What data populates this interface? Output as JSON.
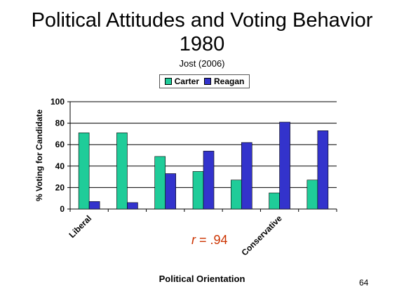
{
  "slide": {
    "title_line1": "Political Attitudes and Voting Behavior",
    "title_line2": "1980",
    "subtitle": "Jost (2006)",
    "annotation_r": "r",
    "annotation_value": " = .94",
    "slide_number": "64"
  },
  "chart_data": {
    "type": "bar",
    "categories": [
      "Liberal",
      "",
      "",
      "",
      "",
      "Conservative",
      ""
    ],
    "series": [
      {
        "name": "Carter",
        "values": [
          71,
          71,
          49,
          35,
          27,
          15,
          27
        ],
        "color": "#1fcc99"
      },
      {
        "name": "Reagan",
        "values": [
          7,
          6,
          33,
          54,
          62,
          81,
          73
        ],
        "color": "#3333cc"
      }
    ],
    "xlabel": "Political Orientation",
    "ylabel": "% Voting for Candidate",
    "ylim": [
      0,
      100
    ],
    "yticks": [
      0,
      20,
      40,
      60,
      80,
      100
    ],
    "grid": true,
    "legend_position": "top"
  }
}
